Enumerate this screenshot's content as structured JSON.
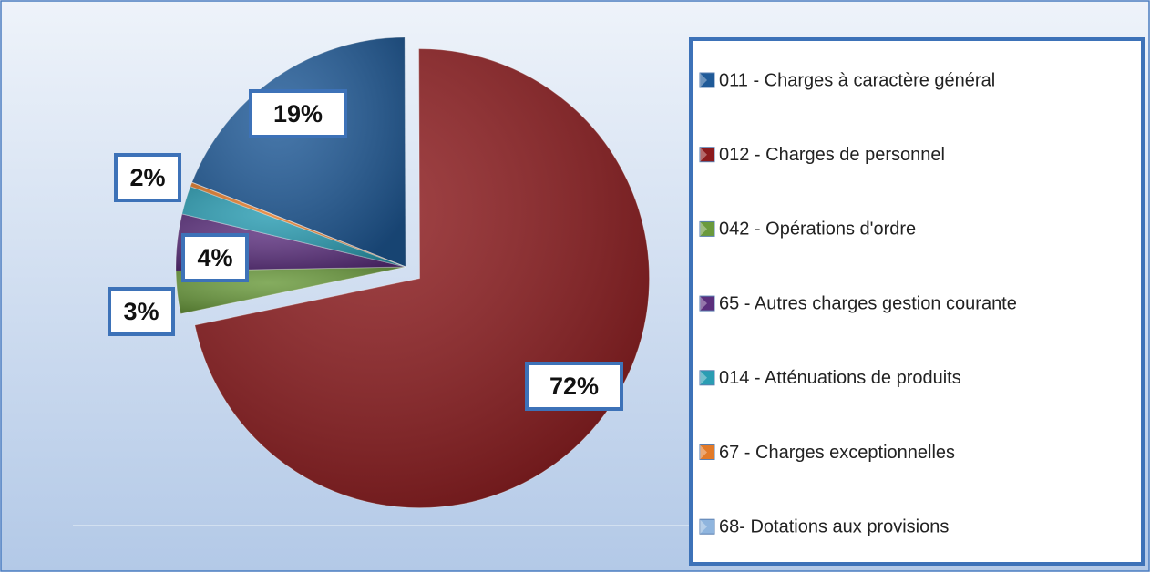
{
  "chart_data": {
    "type": "pie",
    "categories": [
      "011 - Charges à caractère général",
      "012 - Charges de personnel",
      "042 - Opérations d'ordre",
      "65 - Autres charges gestion courante",
      "014 - Atténuations de produits",
      "67 - Charges exceptionnelles",
      "68- Dotations aux provisions"
    ],
    "values": [
      19,
      72,
      3,
      4,
      2,
      0.3,
      0
    ],
    "value_labels": [
      "19%",
      "72%",
      "3%",
      "4%",
      "2%",
      null,
      null
    ],
    "colors": [
      "#1f5a98",
      "#8c1a1d",
      "#6a9a3c",
      "#5b2f7d",
      "#2a9db3",
      "#e27a28",
      "#8fb5de"
    ],
    "legend": "right"
  }
}
